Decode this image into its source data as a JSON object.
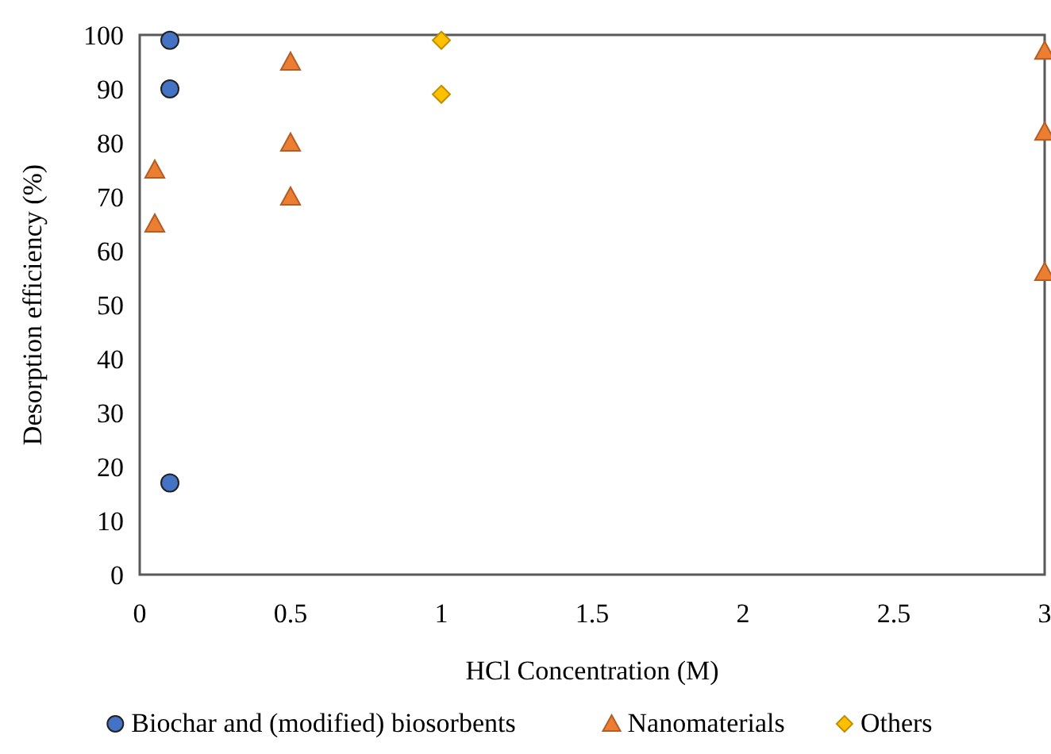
{
  "chart_data": {
    "type": "scatter",
    "xlabel": "HCl Concentration (M)",
    "ylabel": "Desorption efficiency (%)",
    "xlim": [
      0,
      3
    ],
    "xticks": [
      0,
      {
        "value": 0.5,
        "label": "0.5"
      },
      1,
      {
        "value": 1.5,
        "label": "1.5"
      },
      2,
      {
        "value": 2.5,
        "label": "2.5"
      },
      3
    ],
    "ylim": [
      0,
      100
    ],
    "yticks": [
      0,
      10,
      20,
      30,
      40,
      50,
      60,
      70,
      80,
      90,
      100
    ],
    "grid": false,
    "legend": "bottom",
    "series": [
      {
        "name": "Biochar and (modified) biosorbents",
        "color": "#4472c4",
        "marker": "circle",
        "x": [
          0.1,
          0.1,
          0.1
        ],
        "values": [
          99,
          90,
          17
        ]
      },
      {
        "name": "Nanomaterials",
        "color": "#ed7d31",
        "marker": "triangle",
        "x": [
          0.05,
          0.05,
          0.5,
          0.5,
          0.5,
          3,
          3,
          3
        ],
        "values": [
          75,
          65,
          95,
          80,
          70,
          97,
          82,
          56
        ]
      },
      {
        "name": "Others",
        "color": "#ffc000",
        "marker": "diamond",
        "x": [
          1,
          1
        ],
        "values": [
          99,
          89
        ]
      }
    ]
  }
}
